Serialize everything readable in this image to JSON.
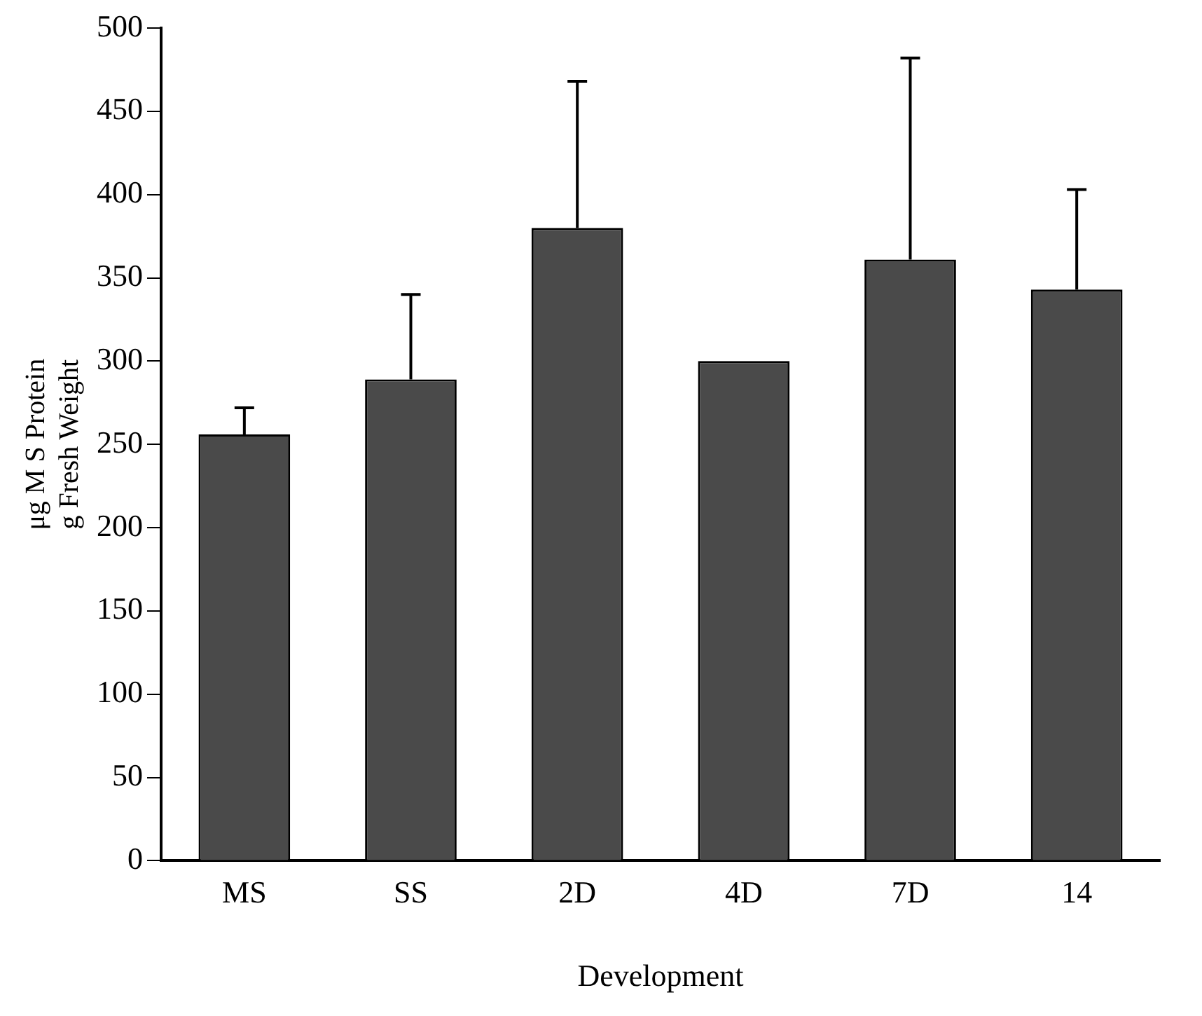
{
  "chart_data": {
    "type": "bar",
    "xlabel": "Development",
    "ylabel": "μg M S Protein\ng Fresh Weight",
    "categories": [
      "MS",
      "SS",
      "2D",
      "4D",
      "7D",
      "14"
    ],
    "values": [
      256,
      289,
      380,
      300,
      361,
      343
    ],
    "errors": [
      [
        256,
        272
      ],
      [
        289,
        340
      ],
      [
        380,
        468
      ],
      null,
      [
        361,
        482
      ],
      [
        343,
        403
      ]
    ],
    "color": "#4a4a4a",
    "ylim": [
      0,
      500
    ],
    "yticks": [
      0,
      50,
      100,
      150,
      200,
      250,
      300,
      350,
      400,
      450,
      500
    ],
    "grid": false,
    "legend": false
  }
}
